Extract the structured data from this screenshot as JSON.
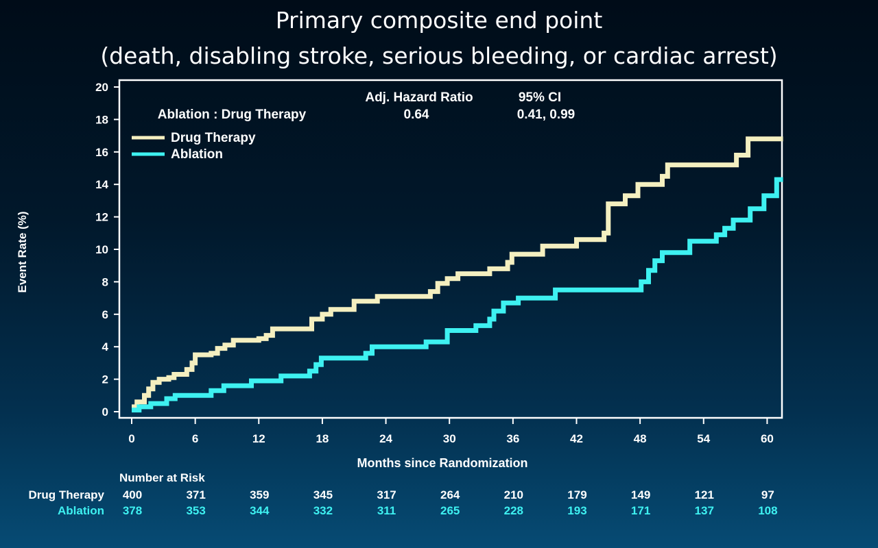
{
  "page": {
    "title_line1": "Primary composite end point",
    "title_line2": "(death, disabling stroke, serious bleeding, or cardiac arrest)"
  },
  "colors": {
    "drug": "#f4efc0",
    "ablation": "#3ef1f1",
    "axis": "#ffffff"
  },
  "chart_data": {
    "type": "line",
    "xlabel": "Months since Randomization",
    "ylabel": "Event Rate (%)",
    "x_ticks": [
      0,
      6,
      12,
      18,
      24,
      30,
      36,
      42,
      48,
      54,
      60
    ],
    "y_ticks": [
      0,
      2,
      4,
      6,
      8,
      10,
      12,
      14,
      16,
      18,
      20
    ],
    "xlim": [
      -1,
      62
    ],
    "ylim": [
      0,
      20
    ],
    "grid": false,
    "legend_position": "top-left",
    "annotation": {
      "comparison": "Ablation : Drug Therapy",
      "hr_header": "Adj. Hazard Ratio",
      "hr_value": "0.64",
      "ci_header": "95% CI",
      "ci_value": "0.41, 0.99"
    },
    "series": [
      {
        "name": "Drug Therapy",
        "color": "#f4efc0",
        "steps": [
          [
            0,
            0.3
          ],
          [
            0.5,
            0.6
          ],
          [
            1.2,
            1.0
          ],
          [
            1.6,
            1.4
          ],
          [
            2.0,
            1.8
          ],
          [
            2.6,
            2.0
          ],
          [
            3.5,
            2.1
          ],
          [
            4.0,
            2.3
          ],
          [
            5.2,
            2.6
          ],
          [
            5.7,
            3.0
          ],
          [
            6.0,
            3.5
          ],
          [
            7.5,
            3.6
          ],
          [
            8.1,
            3.9
          ],
          [
            8.8,
            4.1
          ],
          [
            9.6,
            4.4
          ],
          [
            12.0,
            4.5
          ],
          [
            12.7,
            4.7
          ],
          [
            13.3,
            5.1
          ],
          [
            17.0,
            5.7
          ],
          [
            18.0,
            6.0
          ],
          [
            18.8,
            6.3
          ],
          [
            21.0,
            6.8
          ],
          [
            23.2,
            7.1
          ],
          [
            28.2,
            7.4
          ],
          [
            28.9,
            7.9
          ],
          [
            29.8,
            8.2
          ],
          [
            30.8,
            8.5
          ],
          [
            33.8,
            8.8
          ],
          [
            35.5,
            9.2
          ],
          [
            35.9,
            9.7
          ],
          [
            38.8,
            10.2
          ],
          [
            42.0,
            10.6
          ],
          [
            44.6,
            11.0
          ],
          [
            45.0,
            12.8
          ],
          [
            46.6,
            13.3
          ],
          [
            47.8,
            14.0
          ],
          [
            50.1,
            14.5
          ],
          [
            50.6,
            15.2
          ],
          [
            57.1,
            15.8
          ],
          [
            58.2,
            16.8
          ],
          [
            61.5,
            16.8
          ]
        ]
      },
      {
        "name": "Ablation",
        "color": "#3ef1f1",
        "steps": [
          [
            0,
            0.1
          ],
          [
            0.7,
            0.3
          ],
          [
            1.8,
            0.5
          ],
          [
            3.3,
            0.8
          ],
          [
            4.1,
            1.0
          ],
          [
            7.5,
            1.3
          ],
          [
            8.7,
            1.6
          ],
          [
            11.3,
            1.9
          ],
          [
            14.1,
            2.2
          ],
          [
            16.8,
            2.5
          ],
          [
            17.4,
            2.9
          ],
          [
            17.9,
            3.3
          ],
          [
            22.1,
            3.6
          ],
          [
            22.7,
            4.0
          ],
          [
            27.8,
            4.3
          ],
          [
            29.8,
            5.0
          ],
          [
            32.5,
            5.3
          ],
          [
            33.8,
            5.7
          ],
          [
            34.2,
            6.2
          ],
          [
            35.1,
            6.7
          ],
          [
            36.5,
            7.0
          ],
          [
            40.0,
            7.5
          ],
          [
            48.1,
            8.0
          ],
          [
            48.8,
            8.7
          ],
          [
            49.4,
            9.3
          ],
          [
            50.1,
            9.8
          ],
          [
            52.7,
            10.5
          ],
          [
            55.2,
            10.9
          ],
          [
            56.0,
            11.3
          ],
          [
            56.8,
            11.8
          ],
          [
            58.4,
            12.5
          ],
          [
            59.7,
            13.3
          ],
          [
            60.9,
            14.3
          ],
          [
            61.5,
            14.3
          ]
        ]
      }
    ]
  },
  "risk_table": {
    "title": "Number at Risk",
    "rows": [
      {
        "label": "Drug Therapy",
        "color": "#ffffff",
        "values": [
          "400",
          "371",
          "359",
          "345",
          "317",
          "264",
          "210",
          "179",
          "149",
          "121",
          "97"
        ]
      },
      {
        "label": "Ablation",
        "color": "#3ef1f1",
        "values": [
          "378",
          "353",
          "344",
          "332",
          "311",
          "265",
          "228",
          "193",
          "171",
          "137",
          "108"
        ]
      }
    ]
  }
}
